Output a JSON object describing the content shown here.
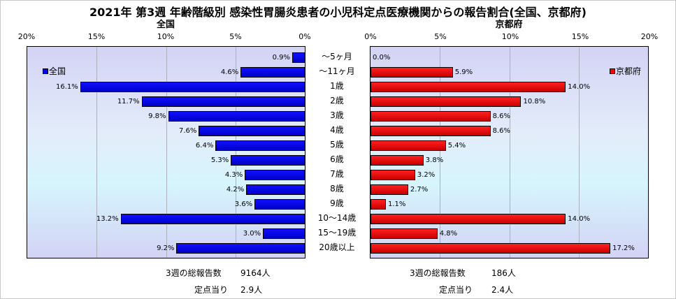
{
  "title": "2021年 第3週 年齢階級別 感染性胃腸炎患者の小児科定点医療機関からの報告割合(全国、京都府)",
  "chart_data": [
    {
      "type": "bar",
      "subtitle": "全国",
      "orientation": "horizontal",
      "direction": "right-to-left",
      "xlim": [
        0,
        20
      ],
      "ticks": [
        "20%",
        "15%",
        "10%",
        "5%",
        "0%"
      ],
      "grid": true,
      "legend": "top-left",
      "color": "#0000ff",
      "categories": [
        "～5ヶ月",
        "～11ヶ月",
        "1歳",
        "2歳",
        "3歳",
        "4歳",
        "5歳",
        "6歳",
        "7歳",
        "8歳",
        "9歳",
        "10～14歳",
        "15～19歳",
        "20歳以上"
      ],
      "series": [
        {
          "name": "全国",
          "values": [
            0.9,
            4.6,
            16.1,
            11.7,
            9.8,
            7.6,
            6.4,
            5.3,
            4.3,
            4.2,
            3.6,
            13.2,
            3.0,
            9.2
          ],
          "labels": [
            "0.9%",
            "4.6%",
            "16.1%",
            "11.7%",
            "9.8%",
            "7.6%",
            "6.4%",
            "5.3%",
            "4.3%",
            "4.2%",
            "3.6%",
            "13.2%",
            "3.0%",
            "9.2%"
          ]
        }
      ]
    },
    {
      "type": "bar",
      "subtitle": "京都府",
      "orientation": "horizontal",
      "direction": "left-to-right",
      "xlim": [
        0,
        20
      ],
      "ticks": [
        "0%",
        "5%",
        "10%",
        "15%",
        "20%"
      ],
      "grid": true,
      "legend": "top-right",
      "color": "#ff0000",
      "categories": [
        "～5ヶ月",
        "～11ヶ月",
        "1歳",
        "2歳",
        "3歳",
        "4歳",
        "5歳",
        "6歳",
        "7歳",
        "8歳",
        "9歳",
        "10～14歳",
        "15～19歳",
        "20歳以上"
      ],
      "series": [
        {
          "name": "京都府",
          "values": [
            0.0,
            5.9,
            14.0,
            10.8,
            8.6,
            8.6,
            5.4,
            3.8,
            3.2,
            2.7,
            1.1,
            14.0,
            4.8,
            17.2
          ],
          "labels": [
            "0.0%",
            "5.9%",
            "14.0%",
            "10.8%",
            "8.6%",
            "8.6%",
            "5.4%",
            "3.8%",
            "3.2%",
            "2.7%",
            "1.1%",
            "14.0%",
            "4.8%",
            "17.2%"
          ]
        }
      ]
    }
  ],
  "footer": {
    "national": {
      "total_label": "3週の総報告数",
      "total_value": "9164人",
      "per_label": "定点当り",
      "per_value": "2.9人"
    },
    "kyoto": {
      "total_label": "3週の総報告数",
      "total_value": "186人",
      "per_label": "定点当り",
      "per_value": "2.4人"
    }
  }
}
